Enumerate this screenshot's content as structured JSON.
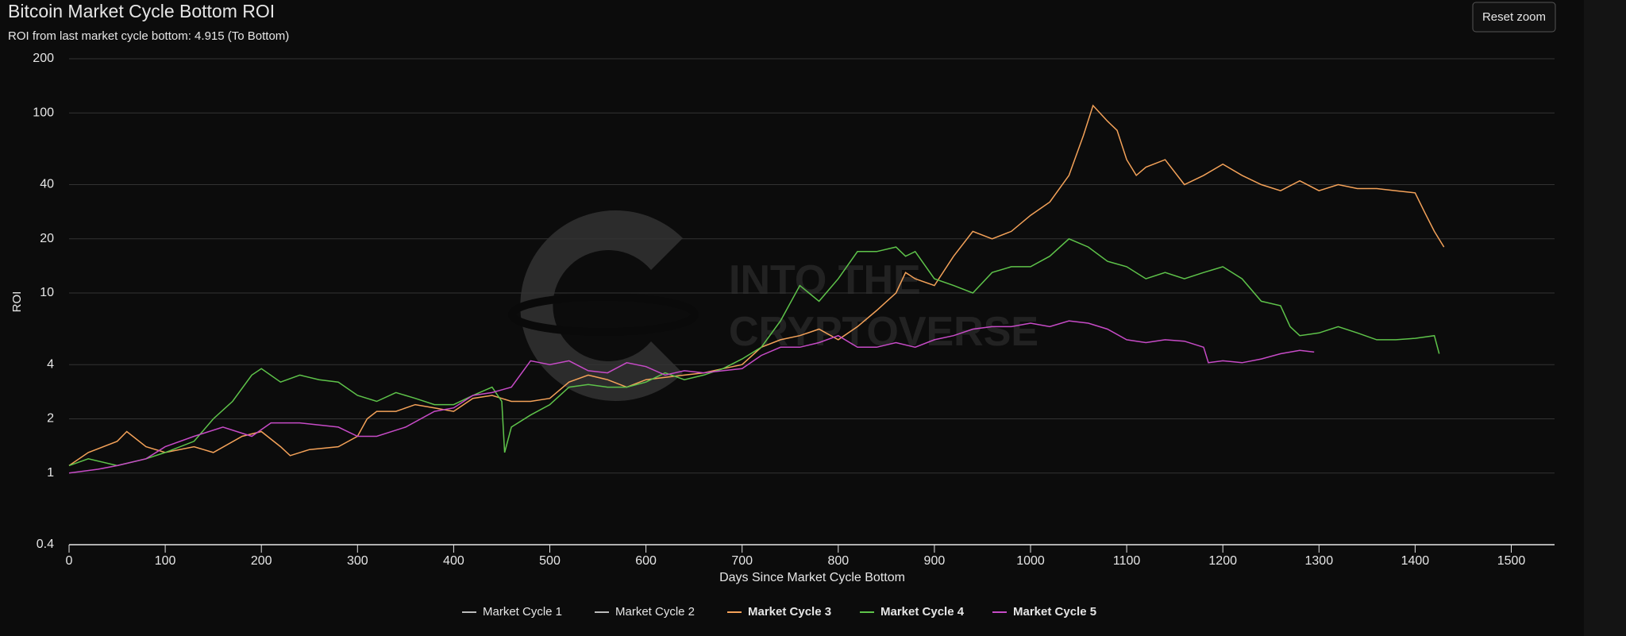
{
  "chart_data": {
    "type": "line",
    "title": "Bitcoin Market Cycle Bottom ROI",
    "subtitle": "ROI from last market cycle bottom: 4.915 (To Bottom)",
    "button": "Reset zoom",
    "watermark": [
      "INTO THE",
      "CRYPTOVERSE"
    ],
    "x_label": "Days Since Market Cycle Bottom",
    "y_label": "ROI",
    "log_y": true,
    "grid": true,
    "xlim": [
      0,
      1545
    ],
    "xticks": [
      0,
      100,
      200,
      300,
      400,
      500,
      600,
      700,
      800,
      900,
      1000,
      1100,
      1200,
      1300,
      1400,
      1500
    ],
    "ylim": [
      0.4,
      200
    ],
    "yticks": [
      0.4,
      1,
      2,
      4,
      10,
      20,
      40,
      100,
      200
    ],
    "series": [
      {
        "name": "Market Cycle 1",
        "color": "#bbbbbb",
        "visible": false,
        "x": [],
        "values": []
      },
      {
        "name": "Market Cycle 2",
        "color": "#bbbbbb",
        "visible": false,
        "x": [],
        "values": []
      },
      {
        "name": "Market Cycle 3",
        "color": "#f4a259",
        "visible": true,
        "x": [
          0,
          20,
          50,
          60,
          80,
          100,
          130,
          150,
          180,
          200,
          220,
          230,
          250,
          280,
          300,
          310,
          320,
          340,
          360,
          380,
          400,
          420,
          440,
          460,
          480,
          500,
          520,
          540,
          560,
          580,
          600,
          620,
          640,
          660,
          680,
          700,
          720,
          740,
          760,
          780,
          800,
          820,
          840,
          860,
          870,
          880,
          900,
          920,
          940,
          960,
          980,
          1000,
          1020,
          1040,
          1055,
          1065,
          1080,
          1090,
          1100,
          1110,
          1120,
          1140,
          1160,
          1180,
          1200,
          1220,
          1240,
          1260,
          1280,
          1300,
          1320,
          1340,
          1360,
          1380,
          1400,
          1410,
          1420,
          1430
        ],
        "values": [
          1.1,
          1.3,
          1.5,
          1.7,
          1.4,
          1.3,
          1.4,
          1.3,
          1.6,
          1.7,
          1.4,
          1.25,
          1.35,
          1.4,
          1.6,
          2.0,
          2.2,
          2.2,
          2.4,
          2.3,
          2.2,
          2.6,
          2.7,
          2.5,
          2.5,
          2.6,
          3.2,
          3.5,
          3.3,
          3.0,
          3.3,
          3.4,
          3.5,
          3.6,
          3.8,
          4.0,
          5.0,
          5.5,
          5.8,
          6.3,
          5.5,
          6.5,
          8.0,
          10,
          13,
          12,
          11,
          16,
          22,
          20,
          22,
          27,
          32,
          45,
          75,
          110,
          90,
          80,
          55,
          45,
          50,
          55,
          40,
          45,
          52,
          45,
          40,
          37,
          42,
          37,
          40,
          38,
          38,
          37,
          36,
          28,
          22,
          18
        ]
      },
      {
        "name": "Market Cycle 4",
        "color": "#5ec34a",
        "visible": true,
        "x": [
          0,
          20,
          50,
          80,
          100,
          130,
          150,
          170,
          190,
          200,
          220,
          240,
          260,
          280,
          300,
          320,
          340,
          360,
          380,
          400,
          420,
          440,
          450,
          453,
          460,
          480,
          500,
          520,
          540,
          560,
          580,
          600,
          620,
          640,
          660,
          680,
          700,
          720,
          740,
          760,
          780,
          800,
          820,
          840,
          860,
          870,
          880,
          900,
          920,
          940,
          960,
          980,
          1000,
          1020,
          1040,
          1060,
          1080,
          1100,
          1120,
          1140,
          1160,
          1180,
          1200,
          1220,
          1240,
          1260,
          1270,
          1280,
          1300,
          1320,
          1340,
          1360,
          1380,
          1400,
          1420,
          1425
        ],
        "values": [
          1.1,
          1.2,
          1.1,
          1.2,
          1.3,
          1.5,
          2.0,
          2.5,
          3.5,
          3.8,
          3.2,
          3.5,
          3.3,
          3.2,
          2.7,
          2.5,
          2.8,
          2.6,
          2.4,
          2.4,
          2.7,
          3.0,
          2.5,
          1.3,
          1.8,
          2.1,
          2.4,
          3.0,
          3.1,
          3.0,
          3.0,
          3.2,
          3.6,
          3.3,
          3.5,
          3.8,
          4.3,
          5.0,
          7.0,
          11,
          9,
          12,
          17,
          17,
          18,
          16,
          17,
          12,
          11,
          10,
          13,
          14,
          14,
          16,
          20,
          18,
          15,
          14,
          12,
          13,
          12,
          13,
          14,
          12,
          9,
          8.5,
          6.5,
          5.8,
          6.0,
          6.5,
          6.0,
          5.5,
          5.5,
          5.6,
          5.8,
          4.6
        ]
      },
      {
        "name": "Market Cycle 5",
        "color": "#c74bc7",
        "visible": true,
        "x": [
          0,
          30,
          50,
          80,
          100,
          130,
          160,
          190,
          210,
          240,
          280,
          300,
          320,
          350,
          380,
          400,
          420,
          440,
          460,
          480,
          500,
          520,
          540,
          560,
          580,
          600,
          620,
          640,
          660,
          680,
          700,
          720,
          740,
          760,
          780,
          800,
          820,
          840,
          860,
          880,
          900,
          920,
          940,
          960,
          980,
          1000,
          1020,
          1040,
          1060,
          1080,
          1100,
          1120,
          1140,
          1160,
          1180,
          1185,
          1200,
          1220,
          1240,
          1260,
          1280,
          1295
        ],
        "values": [
          1.0,
          1.05,
          1.1,
          1.2,
          1.4,
          1.6,
          1.8,
          1.6,
          1.9,
          1.9,
          1.8,
          1.6,
          1.6,
          1.8,
          2.2,
          2.3,
          2.7,
          2.8,
          3.0,
          4.2,
          4.0,
          4.2,
          3.7,
          3.6,
          4.1,
          3.9,
          3.5,
          3.7,
          3.6,
          3.7,
          3.8,
          4.5,
          5.0,
          5.0,
          5.3,
          5.8,
          5.0,
          5.0,
          5.3,
          5.0,
          5.5,
          5.8,
          6.3,
          6.5,
          6.5,
          6.8,
          6.5,
          7.0,
          6.8,
          6.3,
          5.5,
          5.3,
          5.5,
          5.4,
          5.0,
          4.1,
          4.2,
          4.1,
          4.3,
          4.6,
          4.8,
          4.7
        ]
      }
    ]
  }
}
